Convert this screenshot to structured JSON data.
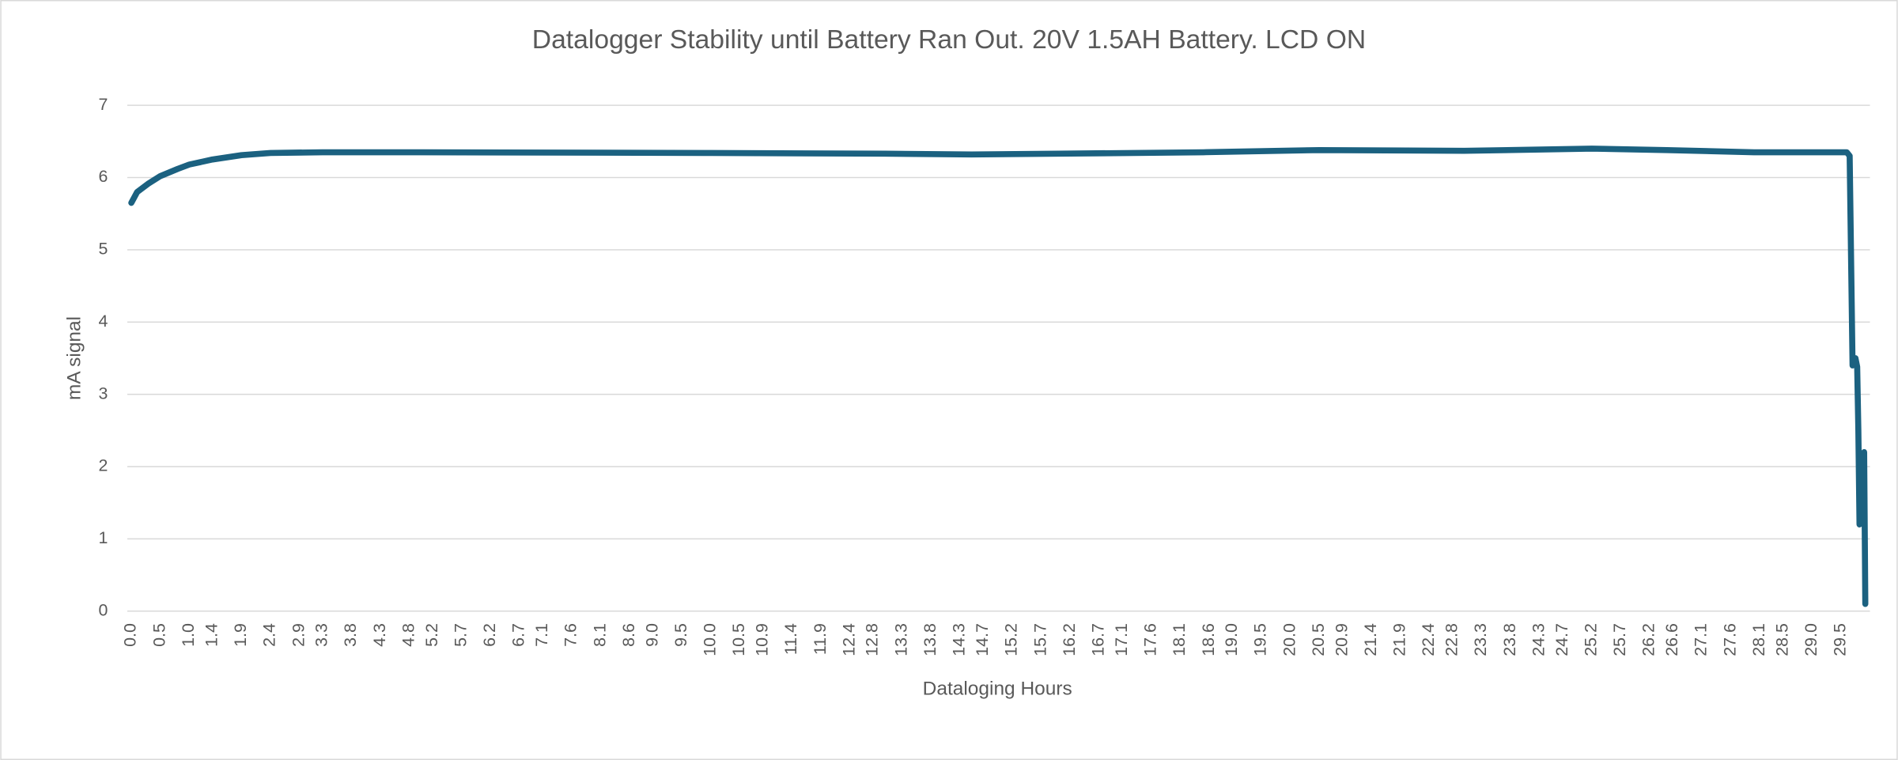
{
  "chart_data": {
    "type": "line",
    "title": "Datalogger Stability until Battery Ran Out. 20V 1.5AH Battery. LCD ON",
    "x_label": "Dataloging Hours",
    "y_label": "mA signal",
    "color": "#1b6180",
    "grid": true,
    "xlim": [
      -0.07,
      30.0
    ],
    "ylim": [
      0,
      7
    ],
    "yticks": [
      0,
      1,
      2,
      3,
      4,
      5,
      6,
      7
    ],
    "xticks": [
      {
        "value": 0,
        "label": "0.0"
      },
      0.5,
      {
        "value": 1,
        "label": "1.0"
      },
      1.4,
      1.9,
      2.4,
      2.9,
      3.3,
      3.8,
      4.3,
      4.8,
      5.2,
      5.7,
      6.2,
      6.7,
      7.1,
      7.6,
      8.1,
      8.6,
      {
        "value": 9,
        "label": "9.0"
      },
      9.5,
      {
        "value": 10,
        "label": "10.0"
      },
      10.5,
      10.9,
      11.4,
      11.9,
      12.4,
      12.8,
      13.3,
      13.8,
      14.3,
      14.7,
      15.2,
      15.7,
      16.2,
      16.7,
      17.1,
      17.6,
      18.1,
      18.6,
      {
        "value": 19,
        "label": "19.0"
      },
      19.5,
      {
        "value": 20,
        "label": "20.0"
      },
      20.5,
      20.9,
      21.4,
      21.9,
      22.4,
      22.8,
      23.3,
      23.8,
      24.3,
      24.7,
      25.2,
      25.7,
      26.2,
      26.6,
      27.1,
      27.6,
      28.1,
      28.5,
      {
        "value": 29,
        "label": "29.0"
      },
      29.5
    ],
    "x": [
      0,
      0.1,
      0.3,
      0.5,
      0.8,
      1.0,
      1.4,
      1.9,
      2.4,
      3.3,
      5,
      10,
      13,
      14.5,
      16,
      18.5,
      20.5,
      23,
      25.2,
      26.5,
      28,
      29.6,
      29.65,
      29.7,
      29.75,
      29.78,
      29.8,
      29.82,
      29.85,
      29.88,
      29.9,
      29.92
    ],
    "values": [
      5.65,
      5.8,
      5.92,
      6.02,
      6.12,
      6.18,
      6.25,
      6.31,
      6.34,
      6.35,
      6.35,
      6.34,
      6.33,
      6.32,
      6.33,
      6.35,
      6.38,
      6.37,
      6.4,
      6.38,
      6.35,
      6.35,
      6.3,
      3.4,
      3.5,
      3.38,
      2.5,
      1.2,
      1.8,
      1.25,
      2.2,
      0.1
    ]
  }
}
